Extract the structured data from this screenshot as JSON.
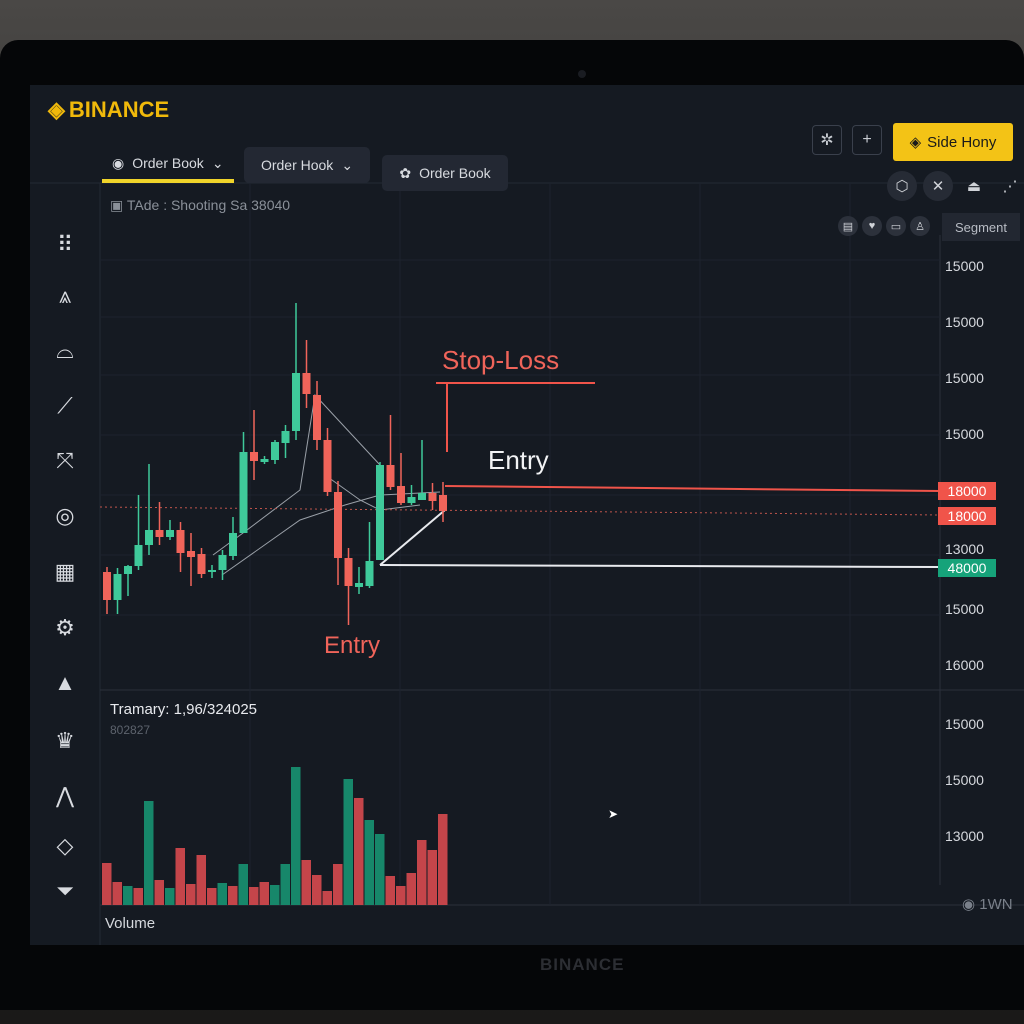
{
  "brand": "BINANCE",
  "bezel_brand": "BINANCE",
  "tabs": [
    {
      "label": "Order Book",
      "active": true
    },
    {
      "label": "Order Hook"
    },
    {
      "label": "Order Book"
    }
  ],
  "toolbar": {
    "settings_icon": "gear-icon",
    "add_icon": "plus-icon",
    "cta_label": "Side Hony",
    "cta_color": "#f3c316"
  },
  "tools": [
    "hexagon-icon",
    "crosshair-icon",
    "lock-icon",
    "more-icon"
  ],
  "mini_tools": [
    "doc-icon",
    "heart-icon",
    "screen-icon",
    "person-icon"
  ],
  "segment_label": "Segment",
  "chart_title": "TAde : Shooting Sa 38040",
  "sidebar": [
    "grid-icon",
    "pattern-icon",
    "tray-icon",
    "pen-icon",
    "expand-icon",
    "target-icon",
    "calendar-icon",
    "badge-icon",
    "triangle-icon",
    "crown-icon",
    "mountain-icon",
    "diamond-icon",
    "funnel-icon"
  ],
  "price_axis": [
    "15000",
    "15000",
    "15000",
    "15000",
    "13000",
    "15000",
    "16000"
  ],
  "volume_axis": [
    "15000",
    "15000",
    "13000"
  ],
  "price_tags": [
    {
      "label": "18000",
      "color": "#f0544a"
    },
    {
      "label": "18000",
      "color": "#f0544a"
    },
    {
      "label": "48000",
      "color": "#16a37a"
    }
  ],
  "annotations": {
    "stop_loss": "Stop-Loss",
    "entry_top": "Entry",
    "entry_bottom": "Entry"
  },
  "volume_info": {
    "line1": "Tramary: 1,96/324025",
    "line2": "802827"
  },
  "volume_label": "Volume",
  "footer_right": "1WN",
  "colors": {
    "up": "#3fc99a",
    "down": "#f0645a",
    "bg": "#151a22"
  },
  "chart_data": {
    "type": "candlestick",
    "candles": [
      [
        "d",
        128,
        100,
        133,
        86
      ],
      [
        "u",
        100,
        126,
        132,
        86
      ],
      [
        "u",
        126,
        134,
        135,
        104
      ],
      [
        "u",
        134,
        155,
        205,
        130
      ],
      [
        "u",
        155,
        170,
        236,
        145
      ],
      [
        "d",
        170,
        163,
        198,
        155
      ],
      [
        "u",
        163,
        170,
        180,
        160
      ],
      [
        "d",
        170,
        147,
        178,
        128
      ],
      [
        "d",
        149,
        143,
        167,
        114
      ],
      [
        "d",
        146,
        126,
        152,
        122
      ],
      [
        "u",
        128,
        130,
        135,
        122
      ],
      [
        "u",
        130,
        145,
        150,
        120
      ],
      [
        "u",
        144,
        167,
        183,
        140
      ],
      [
        "u",
        167,
        248,
        268,
        167
      ],
      [
        "d",
        248,
        239,
        290,
        220
      ],
      [
        "u",
        238,
        241,
        244,
        236
      ],
      [
        "u",
        240,
        258,
        260,
        236
      ],
      [
        "u",
        257,
        269,
        275,
        242
      ],
      [
        "u",
        269,
        327,
        397,
        260
      ],
      [
        "d",
        327,
        306,
        360,
        292
      ],
      [
        "d",
        305,
        260,
        319,
        250
      ],
      [
        "d",
        260,
        208,
        272,
        204
      ],
      [
        "d",
        208,
        142,
        219,
        115
      ],
      [
        "d",
        142,
        114,
        152,
        75
      ],
      [
        "u",
        113,
        117,
        133,
        106
      ],
      [
        "u",
        114,
        139,
        178,
        112
      ],
      [
        "u",
        140,
        235,
        238,
        140
      ],
      [
        "d",
        235,
        213,
        285,
        210
      ],
      [
        "d",
        214,
        197,
        247,
        195
      ],
      [
        "u",
        197,
        203,
        215,
        195
      ],
      [
        "u",
        200,
        207,
        260,
        200
      ],
      [
        "d",
        207,
        199,
        217,
        190
      ],
      [
        "d",
        205,
        189,
        218,
        178
      ]
    ],
    "volume": [
      [
        42,
        "d"
      ],
      [
        23,
        "d"
      ],
      [
        19,
        "u"
      ],
      [
        17,
        "d"
      ],
      [
        104,
        "u"
      ],
      [
        25,
        "d"
      ],
      [
        17,
        "u"
      ],
      [
        57,
        "d"
      ],
      [
        21,
        "d"
      ],
      [
        50,
        "d"
      ],
      [
        17,
        "d"
      ],
      [
        22,
        "u"
      ],
      [
        19,
        "d"
      ],
      [
        41,
        "u"
      ],
      [
        18,
        "d"
      ],
      [
        23,
        "d"
      ],
      [
        20,
        "u"
      ],
      [
        41,
        "u"
      ],
      [
        138,
        "u"
      ],
      [
        45,
        "d"
      ],
      [
        30,
        "d"
      ],
      [
        14,
        "d"
      ],
      [
        41,
        "d"
      ],
      [
        126,
        "u"
      ],
      [
        107,
        "d"
      ],
      [
        85,
        "u"
      ],
      [
        71,
        "u"
      ],
      [
        29,
        "d"
      ],
      [
        19,
        "d"
      ],
      [
        32,
        "d"
      ],
      [
        65,
        "d"
      ],
      [
        55,
        "d"
      ],
      [
        91,
        "d"
      ]
    ]
  }
}
